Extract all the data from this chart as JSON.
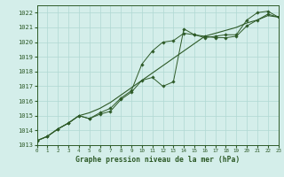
{
  "xlabel": "Graphe pression niveau de la mer (hPa)",
  "ylim": [
    1013.0,
    1022.5
  ],
  "xlim": [
    0,
    23
  ],
  "yticks": [
    1013,
    1014,
    1015,
    1016,
    1017,
    1018,
    1019,
    1020,
    1021,
    1022
  ],
  "xticks": [
    0,
    1,
    2,
    3,
    4,
    5,
    6,
    7,
    8,
    9,
    10,
    11,
    12,
    13,
    14,
    15,
    16,
    17,
    18,
    19,
    20,
    21,
    22,
    23
  ],
  "background_color": "#d4eeea",
  "grid_color": "#b0d8d2",
  "line_color": "#2d5a27",
  "series1_x": [
    0,
    1,
    2,
    3,
    4,
    5,
    6,
    7,
    8,
    9,
    10,
    11,
    12,
    13,
    14,
    15,
    16,
    17,
    18,
    19,
    20,
    21,
    22,
    23
  ],
  "series1": [
    1013.3,
    1013.6,
    1014.1,
    1014.5,
    1015.0,
    1014.8,
    1015.1,
    1015.3,
    1016.1,
    1016.6,
    1017.4,
    1017.6,
    1017.0,
    1017.3,
    1020.9,
    1020.5,
    1020.4,
    1020.3,
    1020.3,
    1020.4,
    1021.1,
    1021.5,
    1021.9,
    1021.7
  ],
  "series2_x": [
    0,
    1,
    2,
    3,
    4,
    5,
    6,
    7,
    8,
    9,
    10,
    11,
    12,
    13,
    14,
    15,
    16,
    17,
    18,
    19,
    20,
    21,
    22,
    23
  ],
  "series2": [
    1013.3,
    1013.6,
    1014.1,
    1014.5,
    1015.0,
    1015.2,
    1015.5,
    1015.9,
    1016.4,
    1016.9,
    1017.4,
    1017.9,
    1018.4,
    1018.9,
    1019.4,
    1019.9,
    1020.4,
    1020.6,
    1020.8,
    1021.0,
    1021.3,
    1021.5,
    1021.8,
    1021.7
  ],
  "series3_x": [
    0,
    1,
    2,
    3,
    4,
    5,
    6,
    7,
    8,
    9,
    10,
    11,
    12,
    13,
    14,
    15,
    16,
    17,
    18,
    19,
    20,
    21,
    22,
    23
  ],
  "series3": [
    1013.3,
    1013.6,
    1014.1,
    1014.5,
    1015.0,
    1014.8,
    1015.2,
    1015.5,
    1016.2,
    1016.7,
    1018.5,
    1019.4,
    1020.0,
    1020.1,
    1020.6,
    1020.5,
    1020.3,
    1020.4,
    1020.5,
    1020.5,
    1021.5,
    1022.0,
    1022.1,
    1021.7
  ]
}
